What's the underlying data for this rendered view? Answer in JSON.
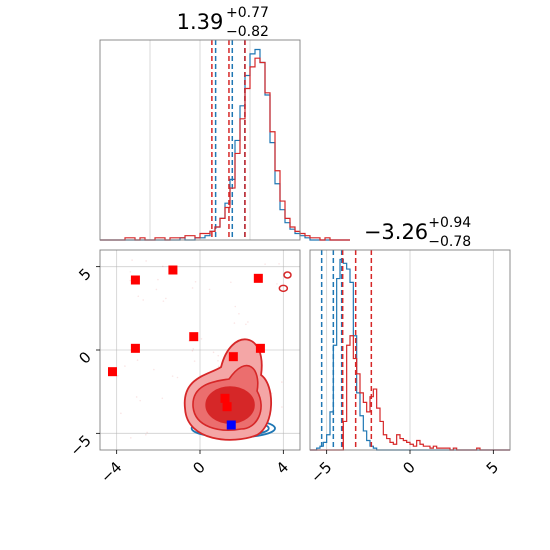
{
  "chart_data": [
    {
      "type": "histogram",
      "panel": "top-left",
      "title": {
        "main": "1.39",
        "sup": "+0.77",
        "sub": "−0.82"
      },
      "xlim": [
        -4.8,
        4.8
      ],
      "grid": true,
      "ticks_shown": false,
      "series": [
        {
          "name": "",
          "color": "#1f77b4",
          "quantile_lines": [
            0.75,
            1.55,
            2.15
          ],
          "bins": {
            "start": -4.8,
            "width": 0.24,
            "counts": [
              0,
              0,
              0,
              0,
              0,
              0,
              0,
              0,
              0,
              0,
              0,
              0,
              0,
              0,
              0,
              0,
              1,
              0,
              0,
              1,
              1,
              2,
              4,
              6,
              10,
              17,
              28,
              46,
              62,
              76,
              86,
              88,
              82,
              67,
              45,
              26,
              14,
              8,
              5,
              3,
              2,
              1,
              0,
              0,
              0,
              0,
              0,
              0,
              0,
              0
            ]
          }
        },
        {
          "name": "",
          "color": "#d62728",
          "quantile_lines": [
            0.57,
            1.39,
            2.16
          ],
          "bins": {
            "start": -4.8,
            "width": 0.24,
            "counts": [
              0,
              0,
              0,
              0,
              0,
              1,
              1,
              0,
              1,
              0,
              0,
              1,
              1,
              0,
              1,
              1,
              1,
              2,
              2,
              1,
              3,
              3,
              4,
              6,
              10,
              15,
              24,
              40,
              56,
              70,
              80,
              84,
              82,
              68,
              50,
              32,
              18,
              10,
              6,
              4,
              3,
              2,
              1,
              1,
              0,
              1,
              0,
              0,
              0,
              0
            ]
          }
        }
      ]
    },
    {
      "type": "scatter",
      "panel": "bottom-left",
      "xlim": [
        -4.8,
        4.8
      ],
      "ylim": [
        -6,
        6
      ],
      "x_ticks": [
        "−4",
        "0",
        "4"
      ],
      "y_ticks": [
        "−5",
        "0",
        "5"
      ],
      "grid": true,
      "markers": {
        "red": [
          [
            -3.1,
            4.2
          ],
          [
            -1.3,
            4.8
          ],
          [
            2.8,
            4.3
          ],
          [
            -3.1,
            0.1
          ],
          [
            -0.3,
            0.8
          ],
          [
            2.9,
            0.1
          ],
          [
            -4.2,
            -1.3
          ],
          [
            1.6,
            -0.4
          ],
          [
            1.2,
            -2.9
          ],
          [
            1.3,
            -3.4
          ]
        ],
        "blue": [
          [
            1.5,
            -4.5
          ]
        ]
      },
      "contours": {
        "blue": {
          "center": [
            1.6,
            -4.7
          ],
          "color": "#1f77b4"
        },
        "red": {
          "center": [
            1.3,
            -3.3
          ],
          "color": "#d62728"
        }
      }
    },
    {
      "type": "histogram",
      "panel": "bottom-right",
      "title": {
        "main": "−3.26",
        "sup": "+0.94",
        "sub": "−0.78"
      },
      "xlim": [
        -6,
        6
      ],
      "x_ticks": [
        "−5",
        "0",
        "5"
      ],
      "grid": true,
      "series": [
        {
          "name": "",
          "color": "#1f77b4",
          "quantile_lines": [
            -5.3,
            -4.6,
            -4.1
          ],
          "bins": {
            "start": -6,
            "width": 0.2,
            "counts": [
              0,
              0,
              1,
              2,
              4,
              8,
              20,
              55,
              90,
              100,
              98,
              95,
              88,
              60,
              30,
              18,
              10,
              5,
              2,
              1,
              0,
              0,
              0,
              0,
              0,
              0,
              0,
              0,
              0,
              0,
              0,
              0,
              0,
              0,
              0,
              0,
              0,
              0,
              0,
              0,
              0,
              0,
              0,
              0,
              0,
              0,
              0,
              0,
              0,
              0,
              0,
              0,
              0,
              0,
              0,
              0,
              0,
              0,
              0,
              0
            ]
          }
        },
        {
          "name": "",
          "color": "#d62728",
          "quantile_lines": [
            -4.04,
            -3.26,
            -2.32
          ],
          "bins": {
            "start": -6,
            "width": 0.2,
            "counts": [
              0,
              0,
              0,
              0,
              0,
              0,
              0,
              0,
              0,
              0,
              15,
              55,
              60,
              48,
              40,
              30,
              25,
              20,
              28,
              32,
              22,
              15,
              8,
              6,
              4,
              3,
              8,
              6,
              5,
              4,
              3,
              2,
              5,
              3,
              2,
              2,
              1,
              2,
              1,
              1,
              1,
              1,
              0,
              1,
              0,
              0,
              0,
              0,
              0,
              0,
              1,
              0,
              0,
              0,
              0,
              0,
              0,
              0,
              0,
              0
            ]
          }
        }
      ]
    }
  ]
}
